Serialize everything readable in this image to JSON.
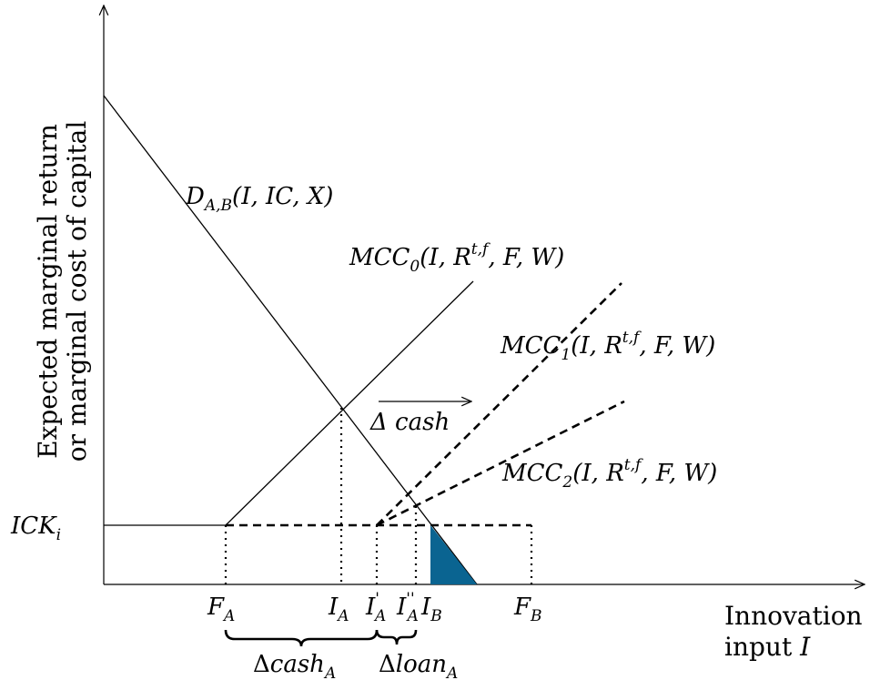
{
  "axes": {
    "y_label_line1": "Expected marginal return",
    "y_label_line2": "or marginal cost of capital",
    "x_label_line1": "Innovation",
    "x_label_line2": "input I"
  },
  "curves": {
    "demand": "D_{A,B}(I, IC, X)",
    "mcc0": "MCC_0(I, R^{t,f}, F, W)",
    "mcc1": "MCC_1(I, R^{t,f}, F, W)",
    "mcc2": "MCC_2(I, R^{t,f}, F, W)"
  },
  "labels": {
    "ick": "ICK_i",
    "shift_arrow": "Δ cash",
    "fa": "F_A",
    "ia": "I_A",
    "ia_prime": "I'_A",
    "ia_double_prime": "I''_A",
    "ib": "I_B",
    "fb": "F_B",
    "delta_cash_a": "Δcash_A",
    "delta_loan_a": "Δloan_A"
  },
  "colors": {
    "shaded_area": "#0a6491",
    "line": "#000000"
  }
}
